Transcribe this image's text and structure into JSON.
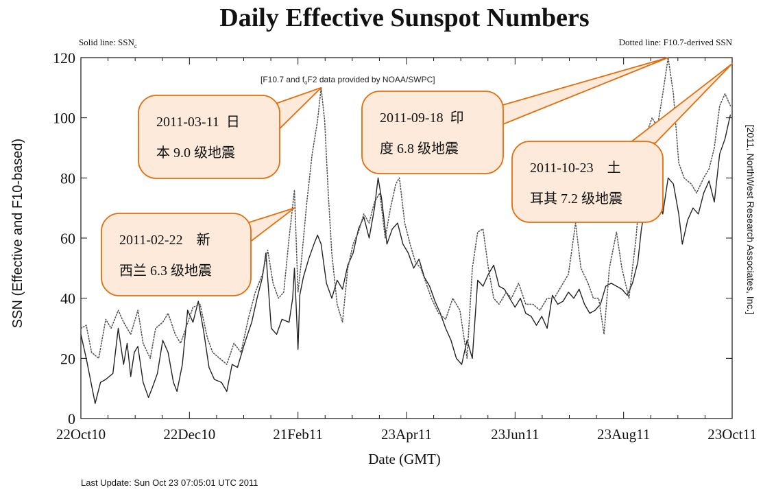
{
  "chart_data": {
    "type": "line",
    "title": "Daily Effective Sunspot Numbers",
    "subtitle_left": "Solid line: SSN",
    "subtitle_left_sub": "c",
    "subtitle_right": "Dotted line: F10.7-derived SSN",
    "credit_pre": "[F10.7 and f",
    "credit_sub": "o",
    "credit_post": "F2 data provided by NOAA/SWPC]",
    "right_note": "[2011, NorthWest Research Associates, Inc.]",
    "xlabel": "Date (GMT)",
    "ylabel": "SSN (Effective and F10-based)",
    "ylim": [
      0,
      120
    ],
    "xlim": [
      "2010-10-22",
      "2011-10-23"
    ],
    "yticks": [
      0,
      20,
      40,
      60,
      80,
      100,
      120
    ],
    "xticks": [
      {
        "date": "2010-10-22",
        "label": "22Oct10"
      },
      {
        "date": "2010-12-22",
        "label": "22Dec10"
      },
      {
        "date": "2011-02-21",
        "label": "21Feb11"
      },
      {
        "date": "2011-04-23",
        "label": "23Apr11"
      },
      {
        "date": "2011-06-23",
        "label": "23Jun11"
      },
      {
        "date": "2011-08-23",
        "label": "23Aug11"
      },
      {
        "date": "2011-10-23",
        "label": "23Oct11"
      }
    ],
    "series": [
      {
        "name": "SSN",
        "style": "solid",
        "color": "#222222",
        "points": [
          [
            "2010-10-22",
            28
          ],
          [
            "2010-10-25",
            20
          ],
          [
            "2010-10-28",
            11
          ],
          [
            "2010-10-30",
            5
          ],
          [
            "2010-11-02",
            12
          ],
          [
            "2010-11-05",
            13
          ],
          [
            "2010-11-09",
            15
          ],
          [
            "2010-11-12",
            30
          ],
          [
            "2010-11-15",
            18
          ],
          [
            "2010-11-17",
            25
          ],
          [
            "2010-11-19",
            14
          ],
          [
            "2010-11-21",
            22
          ],
          [
            "2010-11-23",
            24
          ],
          [
            "2010-11-26",
            12
          ],
          [
            "2010-11-29",
            7
          ],
          [
            "2010-12-01",
            10
          ],
          [
            "2010-12-04",
            15
          ],
          [
            "2010-12-07",
            26
          ],
          [
            "2010-12-10",
            22
          ],
          [
            "2010-12-13",
            12
          ],
          [
            "2010-12-15",
            9
          ],
          [
            "2010-12-18",
            18
          ],
          [
            "2010-12-21",
            36
          ],
          [
            "2010-12-24",
            32
          ],
          [
            "2010-12-27",
            39
          ],
          [
            "2010-12-30",
            29
          ],
          [
            "2011-01-02",
            17
          ],
          [
            "2011-01-05",
            13
          ],
          [
            "2011-01-09",
            12
          ],
          [
            "2011-01-12",
            9
          ],
          [
            "2011-01-15",
            18
          ],
          [
            "2011-01-18",
            17
          ],
          [
            "2011-01-22",
            25
          ],
          [
            "2011-01-26",
            32
          ],
          [
            "2011-01-29",
            40
          ],
          [
            "2011-02-01",
            47
          ],
          [
            "2011-02-03",
            55
          ],
          [
            "2011-02-06",
            30
          ],
          [
            "2011-02-09",
            28
          ],
          [
            "2011-02-12",
            33
          ],
          [
            "2011-02-16",
            32
          ],
          [
            "2011-02-18",
            40
          ],
          [
            "2011-02-19",
            50
          ],
          [
            "2011-02-20",
            37
          ],
          [
            "2011-02-21",
            23
          ],
          [
            "2011-02-22",
            41
          ],
          [
            "2011-02-24",
            47
          ],
          [
            "2011-02-27",
            53
          ],
          [
            "2011-03-02",
            58
          ],
          [
            "2011-03-04",
            61
          ],
          [
            "2011-03-06",
            58
          ],
          [
            "2011-03-09",
            45
          ],
          [
            "2011-03-12",
            40
          ],
          [
            "2011-03-15",
            46
          ],
          [
            "2011-03-18",
            43
          ],
          [
            "2011-03-21",
            51
          ],
          [
            "2011-03-24",
            55
          ],
          [
            "2011-03-27",
            63
          ],
          [
            "2011-03-30",
            67
          ],
          [
            "2011-04-02",
            60
          ],
          [
            "2011-04-05",
            70
          ],
          [
            "2011-04-07",
            80
          ],
          [
            "2011-04-09",
            73
          ],
          [
            "2011-04-12",
            58
          ],
          [
            "2011-04-15",
            63
          ],
          [
            "2011-04-18",
            65
          ],
          [
            "2011-04-21",
            58
          ],
          [
            "2011-04-24",
            55
          ],
          [
            "2011-04-27",
            50
          ],
          [
            "2011-04-30",
            53
          ],
          [
            "2011-05-03",
            47
          ],
          [
            "2011-05-06",
            44
          ],
          [
            "2011-05-09",
            39
          ],
          [
            "2011-05-12",
            35
          ],
          [
            "2011-05-15",
            30
          ],
          [
            "2011-05-18",
            26
          ],
          [
            "2011-05-21",
            20
          ],
          [
            "2011-05-24",
            18
          ],
          [
            "2011-05-27",
            26
          ],
          [
            "2011-05-30",
            20
          ],
          [
            "2011-06-02",
            46
          ],
          [
            "2011-06-05",
            44
          ],
          [
            "2011-06-08",
            48
          ],
          [
            "2011-06-11",
            51
          ],
          [
            "2011-06-14",
            44
          ],
          [
            "2011-06-17",
            43
          ],
          [
            "2011-06-20",
            40
          ],
          [
            "2011-06-23",
            37
          ],
          [
            "2011-06-26",
            40
          ],
          [
            "2011-06-29",
            35
          ],
          [
            "2011-07-02",
            34
          ],
          [
            "2011-07-05",
            31
          ],
          [
            "2011-07-08",
            34
          ],
          [
            "2011-07-11",
            30
          ],
          [
            "2011-07-14",
            41
          ],
          [
            "2011-07-17",
            38
          ],
          [
            "2011-07-20",
            39
          ],
          [
            "2011-07-23",
            42
          ],
          [
            "2011-07-26",
            40
          ],
          [
            "2011-07-29",
            43
          ],
          [
            "2011-08-01",
            38
          ],
          [
            "2011-08-04",
            35
          ],
          [
            "2011-08-07",
            36
          ],
          [
            "2011-08-10",
            38
          ],
          [
            "2011-08-13",
            44
          ],
          [
            "2011-08-16",
            45
          ],
          [
            "2011-08-19",
            44
          ],
          [
            "2011-08-22",
            43
          ],
          [
            "2011-08-25",
            41
          ],
          [
            "2011-08-28",
            45
          ],
          [
            "2011-08-31",
            52
          ],
          [
            "2011-09-02",
            63
          ],
          [
            "2011-09-05",
            73
          ],
          [
            "2011-09-08",
            78
          ],
          [
            "2011-09-11",
            74
          ],
          [
            "2011-09-14",
            68
          ],
          [
            "2011-09-17",
            80
          ],
          [
            "2011-09-20",
            78
          ],
          [
            "2011-09-23",
            68
          ],
          [
            "2011-09-25",
            58
          ],
          [
            "2011-09-28",
            66
          ],
          [
            "2011-10-01",
            70
          ],
          [
            "2011-10-04",
            68
          ],
          [
            "2011-10-07",
            75
          ],
          [
            "2011-10-10",
            79
          ],
          [
            "2011-10-13",
            72
          ],
          [
            "2011-10-16",
            88
          ],
          [
            "2011-10-19",
            93
          ],
          [
            "2011-10-22",
            101
          ]
        ]
      },
      {
        "name": "F10.7-derived SSN",
        "style": "dotted",
        "color": "#555555",
        "points": [
          [
            "2010-10-22",
            30
          ],
          [
            "2010-10-25",
            31
          ],
          [
            "2010-10-28",
            22
          ],
          [
            "2010-11-01",
            20
          ],
          [
            "2010-11-05",
            33
          ],
          [
            "2010-11-08",
            30
          ],
          [
            "2010-11-12",
            36
          ],
          [
            "2010-11-15",
            32
          ],
          [
            "2010-11-19",
            28
          ],
          [
            "2010-11-23",
            36
          ],
          [
            "2010-11-26",
            25
          ],
          [
            "2010-11-30",
            20
          ],
          [
            "2010-12-03",
            30
          ],
          [
            "2010-12-07",
            32
          ],
          [
            "2010-12-10",
            35
          ],
          [
            "2010-12-14",
            28
          ],
          [
            "2010-12-17",
            25
          ],
          [
            "2010-12-20",
            30
          ],
          [
            "2010-12-24",
            37
          ],
          [
            "2010-12-28",
            38
          ],
          [
            "2011-01-01",
            27
          ],
          [
            "2011-01-04",
            22
          ],
          [
            "2011-01-08",
            20
          ],
          [
            "2011-01-12",
            18
          ],
          [
            "2011-01-16",
            25
          ],
          [
            "2011-01-20",
            22
          ],
          [
            "2011-01-24",
            33
          ],
          [
            "2011-01-28",
            42
          ],
          [
            "2011-02-01",
            48
          ],
          [
            "2011-02-04",
            56
          ],
          [
            "2011-02-07",
            45
          ],
          [
            "2011-02-10",
            40
          ],
          [
            "2011-02-13",
            42
          ],
          [
            "2011-02-16",
            60
          ],
          [
            "2011-02-19",
            76
          ],
          [
            "2011-02-21",
            42
          ],
          [
            "2011-02-23",
            53
          ],
          [
            "2011-02-26",
            72
          ],
          [
            "2011-03-01",
            88
          ],
          [
            "2011-03-04",
            99
          ],
          [
            "2011-03-06",
            110
          ],
          [
            "2011-03-08",
            99
          ],
          [
            "2011-03-10",
            75
          ],
          [
            "2011-03-12",
            55
          ],
          [
            "2011-03-15",
            38
          ],
          [
            "2011-03-18",
            32
          ],
          [
            "2011-03-21",
            50
          ],
          [
            "2011-03-24",
            58
          ],
          [
            "2011-03-27",
            62
          ],
          [
            "2011-03-30",
            68
          ],
          [
            "2011-04-02",
            65
          ],
          [
            "2011-04-05",
            72
          ],
          [
            "2011-04-08",
            75
          ],
          [
            "2011-04-11",
            60
          ],
          [
            "2011-04-14",
            70
          ],
          [
            "2011-04-17",
            78
          ],
          [
            "2011-04-19",
            80
          ],
          [
            "2011-04-22",
            65
          ],
          [
            "2011-04-25",
            58
          ],
          [
            "2011-04-28",
            52
          ],
          [
            "2011-05-01",
            50
          ],
          [
            "2011-05-04",
            45
          ],
          [
            "2011-05-07",
            40
          ],
          [
            "2011-05-11",
            35
          ],
          [
            "2011-05-15",
            33
          ],
          [
            "2011-05-19",
            40
          ],
          [
            "2011-05-23",
            36
          ],
          [
            "2011-05-27",
            20
          ],
          [
            "2011-05-30",
            50
          ],
          [
            "2011-06-02",
            62
          ],
          [
            "2011-06-05",
            63
          ],
          [
            "2011-06-08",
            50
          ],
          [
            "2011-06-11",
            40
          ],
          [
            "2011-06-14",
            38
          ],
          [
            "2011-06-18",
            42
          ],
          [
            "2011-06-21",
            40
          ],
          [
            "2011-06-25",
            45
          ],
          [
            "2011-06-29",
            38
          ],
          [
            "2011-07-03",
            38
          ],
          [
            "2011-07-07",
            36
          ],
          [
            "2011-07-11",
            40
          ],
          [
            "2011-07-15",
            40
          ],
          [
            "2011-07-19",
            44
          ],
          [
            "2011-07-23",
            48
          ],
          [
            "2011-07-27",
            65
          ],
          [
            "2011-07-30",
            50
          ],
          [
            "2011-08-03",
            45
          ],
          [
            "2011-08-06",
            40
          ],
          [
            "2011-08-09",
            40
          ],
          [
            "2011-08-12",
            28
          ],
          [
            "2011-08-15",
            50
          ],
          [
            "2011-08-19",
            62
          ],
          [
            "2011-08-22",
            50
          ],
          [
            "2011-08-26",
            40
          ],
          [
            "2011-08-30",
            60
          ],
          [
            "2011-09-02",
            82
          ],
          [
            "2011-09-05",
            95
          ],
          [
            "2011-09-08",
            100
          ],
          [
            "2011-09-11",
            97
          ],
          [
            "2011-09-14",
            108
          ],
          [
            "2011-09-17",
            120
          ],
          [
            "2011-09-20",
            108
          ],
          [
            "2011-09-23",
            85
          ],
          [
            "2011-09-26",
            80
          ],
          [
            "2011-09-30",
            78
          ],
          [
            "2011-10-03",
            75
          ],
          [
            "2011-10-07",
            80
          ],
          [
            "2011-10-10",
            83
          ],
          [
            "2011-10-13",
            90
          ],
          [
            "2011-10-16",
            104
          ],
          [
            "2011-10-19",
            108
          ],
          [
            "2011-10-22",
            104
          ]
        ]
      }
    ],
    "annotations": [
      {
        "lines": [
          "2011-03-11  日",
          "本 9.0 级地震"
        ],
        "target_date": "2011-03-06",
        "target_y": 110
      },
      {
        "lines": [
          "2011-02-22    新",
          "西兰 6.3 级地震"
        ],
        "target_date": "2011-02-19",
        "target_y": 70
      },
      {
        "lines": [
          "2011-09-18  印",
          "度 6.8 级地震"
        ],
        "target_date": "2011-09-17",
        "target_y": 120
      },
      {
        "lines": [
          "2011-10-23    土",
          "耳其 7.2 级地震"
        ],
        "target_date": "2011-10-23",
        "target_y": 118
      }
    ],
    "callout_fill": "#fdeada",
    "callout_stroke": "#e46c0a",
    "last_update": "Last Update: Sun Oct 23 07:05:01 UTC 2011"
  }
}
